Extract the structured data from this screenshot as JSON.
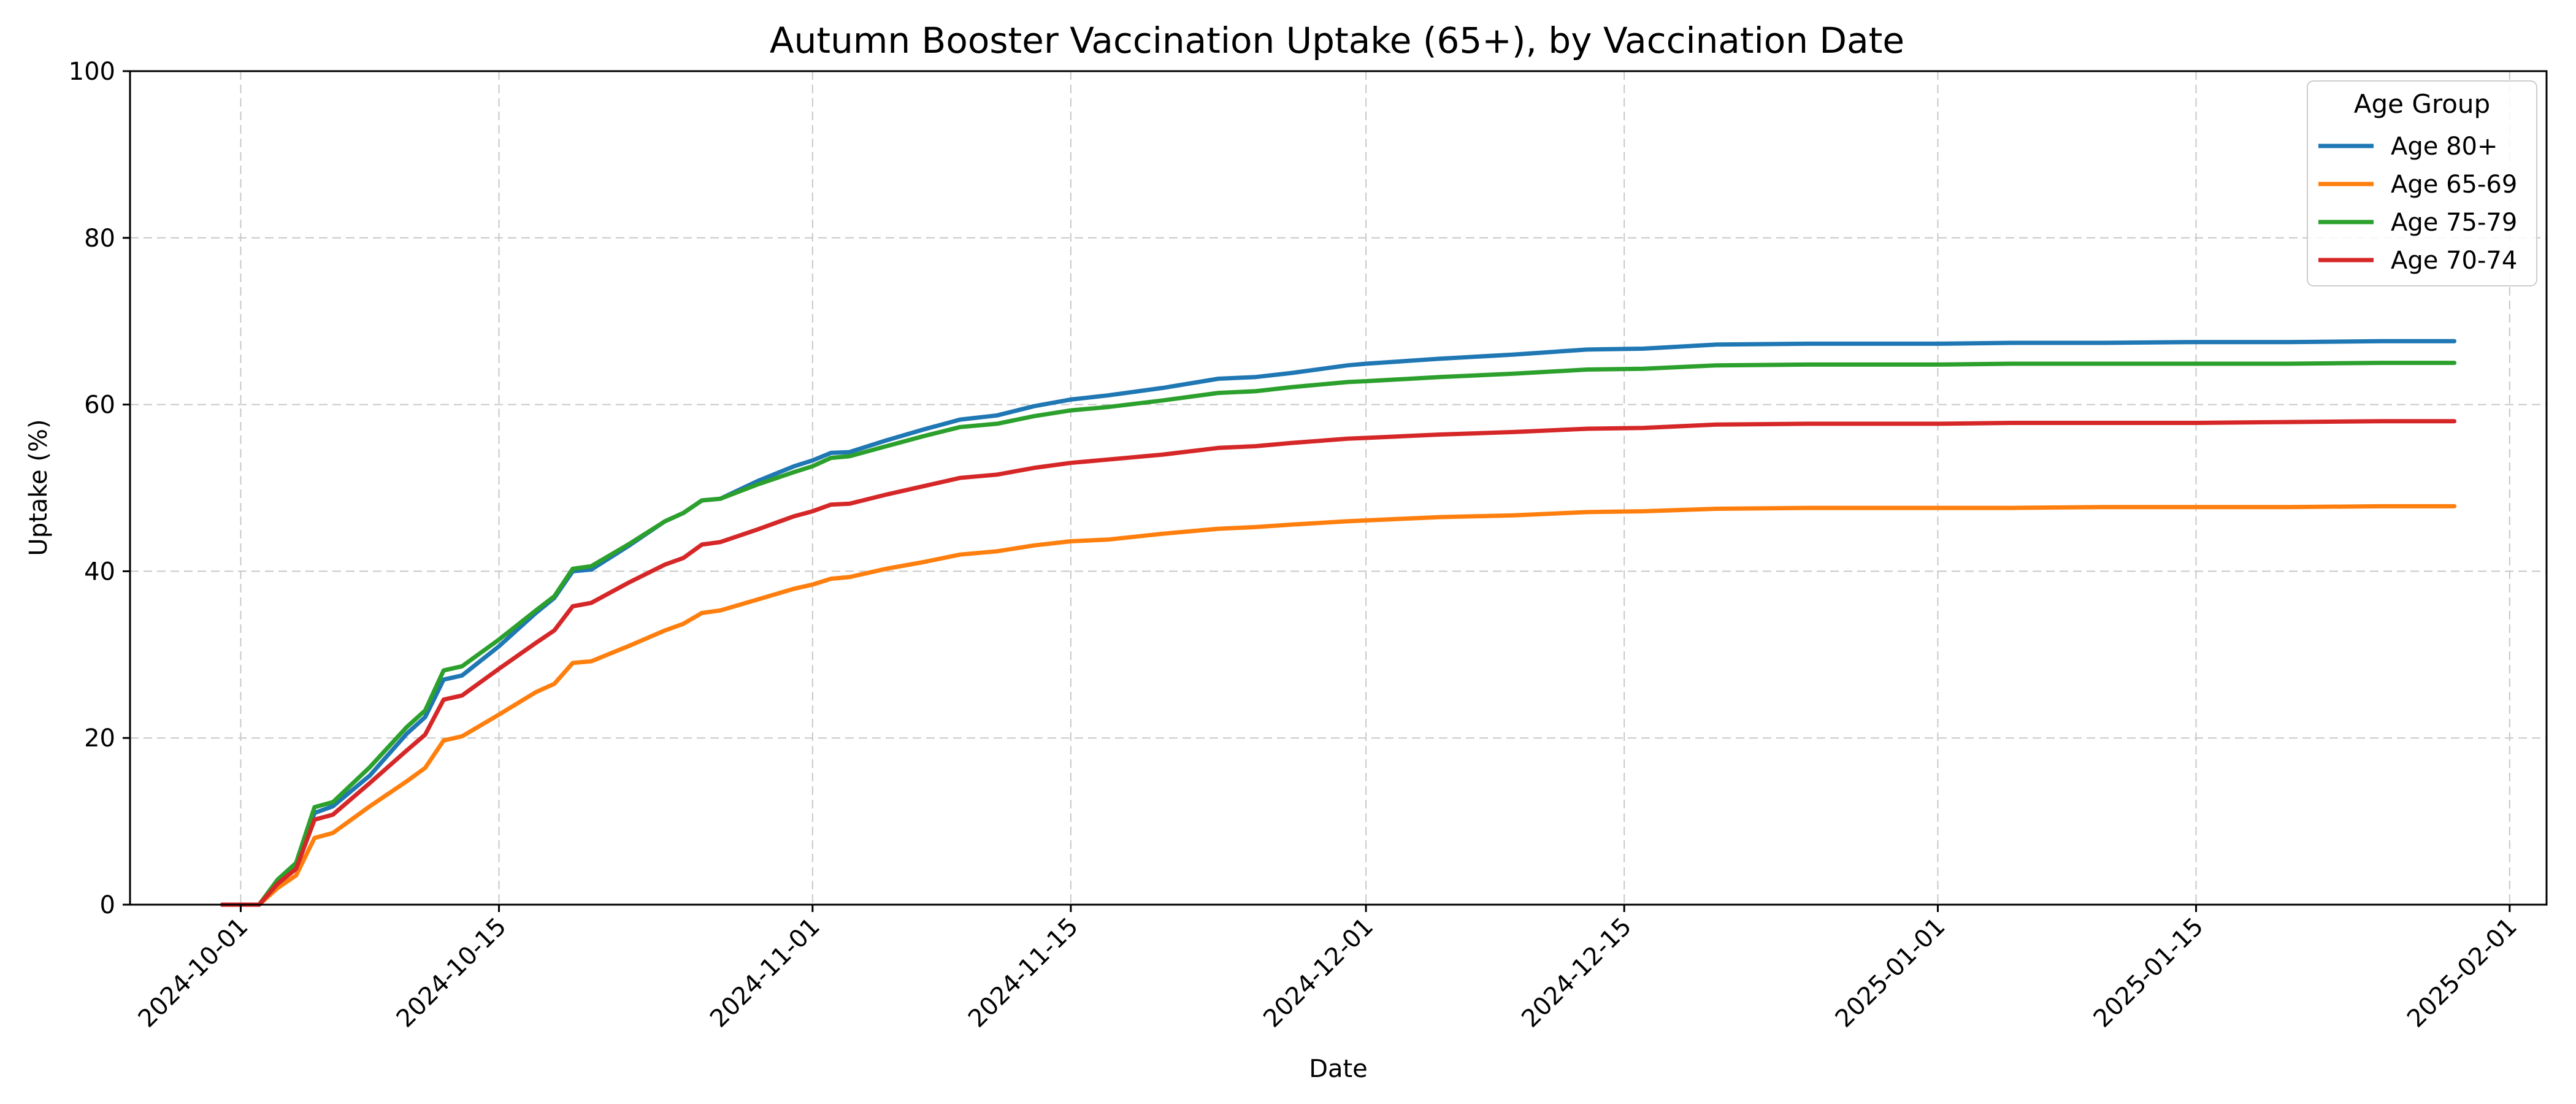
{
  "chart_data": {
    "type": "line",
    "title": "Autumn Booster Vaccination Uptake (65+), by Vaccination Date",
    "xlabel": "Date",
    "ylabel": "Uptake (%)",
    "xlim": [
      "2024-09-25",
      "2025-02-03"
    ],
    "ylim": [
      0,
      100
    ],
    "grid": true,
    "legend_title": "Age Group",
    "legend_position": "top-right",
    "x_ticks": [
      "2024-10-01",
      "2024-10-15",
      "2024-11-01",
      "2024-11-15",
      "2024-12-01",
      "2024-12-15",
      "2025-01-01",
      "2025-01-15",
      "2025-02-01"
    ],
    "y_ticks": [
      0,
      20,
      40,
      60,
      80,
      100
    ],
    "series": [
      {
        "name": "Age 80+",
        "color": "#1f77b4",
        "points": [
          [
            "2024-09-30",
            0
          ],
          [
            "2024-10-02",
            0
          ],
          [
            "2024-10-03",
            2.5
          ],
          [
            "2024-10-04",
            4.5
          ],
          [
            "2024-10-05",
            11
          ],
          [
            "2024-10-06",
            11.8
          ],
          [
            "2024-10-08",
            15.5
          ],
          [
            "2024-10-10",
            20.5
          ],
          [
            "2024-10-11",
            22.5
          ],
          [
            "2024-10-12",
            27
          ],
          [
            "2024-10-13",
            27.5
          ],
          [
            "2024-10-15",
            31
          ],
          [
            "2024-10-17",
            35
          ],
          [
            "2024-10-18",
            36.8
          ],
          [
            "2024-10-19",
            40
          ],
          [
            "2024-10-20",
            40.2
          ],
          [
            "2024-10-22",
            43
          ],
          [
            "2024-10-24",
            46
          ],
          [
            "2024-10-25",
            47
          ],
          [
            "2024-10-26",
            48.5
          ],
          [
            "2024-10-27",
            48.7
          ],
          [
            "2024-10-29",
            50.8
          ],
          [
            "2024-10-31",
            52.6
          ],
          [
            "2024-11-01",
            53.3
          ],
          [
            "2024-11-02",
            54.2
          ],
          [
            "2024-11-03",
            54.3
          ],
          [
            "2024-11-05",
            55.7
          ],
          [
            "2024-11-07",
            57
          ],
          [
            "2024-11-09",
            58.2
          ],
          [
            "2024-11-11",
            58.7
          ],
          [
            "2024-11-13",
            59.8
          ],
          [
            "2024-11-15",
            60.6
          ],
          [
            "2024-11-17",
            61.1
          ],
          [
            "2024-11-20",
            62
          ],
          [
            "2024-11-23",
            63.1
          ],
          [
            "2024-11-25",
            63.3
          ],
          [
            "2024-11-27",
            63.8
          ],
          [
            "2024-11-30",
            64.7
          ],
          [
            "2024-12-01",
            64.9
          ],
          [
            "2024-12-05",
            65.5
          ],
          [
            "2024-12-09",
            66
          ],
          [
            "2024-12-13",
            66.6
          ],
          [
            "2024-12-16",
            66.7
          ],
          [
            "2024-12-20",
            67.2
          ],
          [
            "2024-12-25",
            67.3
          ],
          [
            "2025-01-01",
            67.3
          ],
          [
            "2025-01-05",
            67.4
          ],
          [
            "2025-01-10",
            67.4
          ],
          [
            "2025-01-15",
            67.5
          ],
          [
            "2025-01-20",
            67.5
          ],
          [
            "2025-01-25",
            67.6
          ],
          [
            "2025-01-29",
            67.6
          ]
        ]
      },
      {
        "name": "Age 65-69",
        "color": "#ff7f0e",
        "points": [
          [
            "2024-09-30",
            0
          ],
          [
            "2024-10-02",
            0
          ],
          [
            "2024-10-03",
            2
          ],
          [
            "2024-10-04",
            3.5
          ],
          [
            "2024-10-05",
            8
          ],
          [
            "2024-10-06",
            8.6
          ],
          [
            "2024-10-08",
            11.8
          ],
          [
            "2024-10-10",
            14.8
          ],
          [
            "2024-10-11",
            16.4
          ],
          [
            "2024-10-12",
            19.7
          ],
          [
            "2024-10-13",
            20.2
          ],
          [
            "2024-10-15",
            22.8
          ],
          [
            "2024-10-17",
            25.5
          ],
          [
            "2024-10-18",
            26.5
          ],
          [
            "2024-10-19",
            29
          ],
          [
            "2024-10-20",
            29.2
          ],
          [
            "2024-10-22",
            31
          ],
          [
            "2024-10-24",
            32.9
          ],
          [
            "2024-10-25",
            33.7
          ],
          [
            "2024-10-26",
            35
          ],
          [
            "2024-10-27",
            35.3
          ],
          [
            "2024-10-29",
            36.6
          ],
          [
            "2024-10-31",
            37.9
          ],
          [
            "2024-11-01",
            38.4
          ],
          [
            "2024-11-02",
            39.1
          ],
          [
            "2024-11-03",
            39.3
          ],
          [
            "2024-11-05",
            40.3
          ],
          [
            "2024-11-07",
            41.1
          ],
          [
            "2024-11-09",
            42
          ],
          [
            "2024-11-11",
            42.4
          ],
          [
            "2024-11-13",
            43.1
          ],
          [
            "2024-11-15",
            43.6
          ],
          [
            "2024-11-17",
            43.8
          ],
          [
            "2024-11-20",
            44.5
          ],
          [
            "2024-11-23",
            45.1
          ],
          [
            "2024-11-25",
            45.3
          ],
          [
            "2024-11-27",
            45.6
          ],
          [
            "2024-11-30",
            46
          ],
          [
            "2024-12-01",
            46.1
          ],
          [
            "2024-12-05",
            46.5
          ],
          [
            "2024-12-09",
            46.7
          ],
          [
            "2024-12-13",
            47.1
          ],
          [
            "2024-12-16",
            47.2
          ],
          [
            "2024-12-20",
            47.5
          ],
          [
            "2024-12-25",
            47.6
          ],
          [
            "2025-01-01",
            47.6
          ],
          [
            "2025-01-05",
            47.6
          ],
          [
            "2025-01-10",
            47.7
          ],
          [
            "2025-01-15",
            47.7
          ],
          [
            "2025-01-20",
            47.7
          ],
          [
            "2025-01-25",
            47.8
          ],
          [
            "2025-01-29",
            47.8
          ]
        ]
      },
      {
        "name": "Age 75-79",
        "color": "#2ca02c",
        "points": [
          [
            "2024-09-30",
            0
          ],
          [
            "2024-10-02",
            0
          ],
          [
            "2024-10-03",
            3
          ],
          [
            "2024-10-04",
            5
          ],
          [
            "2024-10-05",
            11.7
          ],
          [
            "2024-10-06",
            12.3
          ],
          [
            "2024-10-08",
            16.5
          ],
          [
            "2024-10-10",
            21.3
          ],
          [
            "2024-10-11",
            23.3
          ],
          [
            "2024-10-12",
            28.1
          ],
          [
            "2024-10-13",
            28.6
          ],
          [
            "2024-10-15",
            31.8
          ],
          [
            "2024-10-17",
            35.3
          ],
          [
            "2024-10-18",
            37
          ],
          [
            "2024-10-19",
            40.3
          ],
          [
            "2024-10-20",
            40.6
          ],
          [
            "2024-10-22",
            43.2
          ],
          [
            "2024-10-24",
            46
          ],
          [
            "2024-10-25",
            47
          ],
          [
            "2024-10-26",
            48.5
          ],
          [
            "2024-10-27",
            48.7
          ],
          [
            "2024-10-29",
            50.4
          ],
          [
            "2024-10-31",
            51.9
          ],
          [
            "2024-11-01",
            52.6
          ],
          [
            "2024-11-02",
            53.6
          ],
          [
            "2024-11-03",
            53.8
          ],
          [
            "2024-11-05",
            55
          ],
          [
            "2024-11-07",
            56.2
          ],
          [
            "2024-11-09",
            57.3
          ],
          [
            "2024-11-11",
            57.7
          ],
          [
            "2024-11-13",
            58.6
          ],
          [
            "2024-11-15",
            59.3
          ],
          [
            "2024-11-17",
            59.7
          ],
          [
            "2024-11-20",
            60.5
          ],
          [
            "2024-11-23",
            61.4
          ],
          [
            "2024-11-25",
            61.6
          ],
          [
            "2024-11-27",
            62.1
          ],
          [
            "2024-11-30",
            62.7
          ],
          [
            "2024-12-01",
            62.8
          ],
          [
            "2024-12-05",
            63.3
          ],
          [
            "2024-12-09",
            63.7
          ],
          [
            "2024-12-13",
            64.2
          ],
          [
            "2024-12-16",
            64.3
          ],
          [
            "2024-12-20",
            64.7
          ],
          [
            "2024-12-25",
            64.8
          ],
          [
            "2025-01-01",
            64.8
          ],
          [
            "2025-01-05",
            64.9
          ],
          [
            "2025-01-10",
            64.9
          ],
          [
            "2025-01-15",
            64.9
          ],
          [
            "2025-01-20",
            64.9
          ],
          [
            "2025-01-25",
            65
          ],
          [
            "2025-01-29",
            65
          ]
        ]
      },
      {
        "name": "Age 70-74",
        "color": "#d62728",
        "points": [
          [
            "2024-09-30",
            0
          ],
          [
            "2024-10-02",
            0
          ],
          [
            "2024-10-03",
            2.5
          ],
          [
            "2024-10-04",
            4.3
          ],
          [
            "2024-10-05",
            10.2
          ],
          [
            "2024-10-06",
            10.8
          ],
          [
            "2024-10-08",
            14.6
          ],
          [
            "2024-10-10",
            18.5
          ],
          [
            "2024-10-11",
            20.4
          ],
          [
            "2024-10-12",
            24.6
          ],
          [
            "2024-10-13",
            25.1
          ],
          [
            "2024-10-15",
            28.3
          ],
          [
            "2024-10-17",
            31.4
          ],
          [
            "2024-10-18",
            32.9
          ],
          [
            "2024-10-19",
            35.8
          ],
          [
            "2024-10-20",
            36.2
          ],
          [
            "2024-10-22",
            38.6
          ],
          [
            "2024-10-24",
            40.8
          ],
          [
            "2024-10-25",
            41.6
          ],
          [
            "2024-10-26",
            43.2
          ],
          [
            "2024-10-27",
            43.5
          ],
          [
            "2024-10-29",
            45
          ],
          [
            "2024-10-31",
            46.6
          ],
          [
            "2024-11-01",
            47.2
          ],
          [
            "2024-11-02",
            48
          ],
          [
            "2024-11-03",
            48.1
          ],
          [
            "2024-11-05",
            49.2
          ],
          [
            "2024-11-07",
            50.2
          ],
          [
            "2024-11-09",
            51.2
          ],
          [
            "2024-11-11",
            51.6
          ],
          [
            "2024-11-13",
            52.4
          ],
          [
            "2024-11-15",
            53
          ],
          [
            "2024-11-17",
            53.4
          ],
          [
            "2024-11-20",
            54
          ],
          [
            "2024-11-23",
            54.8
          ],
          [
            "2024-11-25",
            55
          ],
          [
            "2024-11-27",
            55.4
          ],
          [
            "2024-11-30",
            55.9
          ],
          [
            "2024-12-01",
            56
          ],
          [
            "2024-12-05",
            56.4
          ],
          [
            "2024-12-09",
            56.7
          ],
          [
            "2024-12-13",
            57.1
          ],
          [
            "2024-12-16",
            57.2
          ],
          [
            "2024-12-20",
            57.6
          ],
          [
            "2024-12-25",
            57.7
          ],
          [
            "2025-01-01",
            57.7
          ],
          [
            "2025-01-05",
            57.8
          ],
          [
            "2025-01-10",
            57.8
          ],
          [
            "2025-01-15",
            57.8
          ],
          [
            "2025-01-20",
            57.9
          ],
          [
            "2025-01-25",
            58
          ],
          [
            "2025-01-29",
            58
          ]
        ]
      }
    ]
  }
}
